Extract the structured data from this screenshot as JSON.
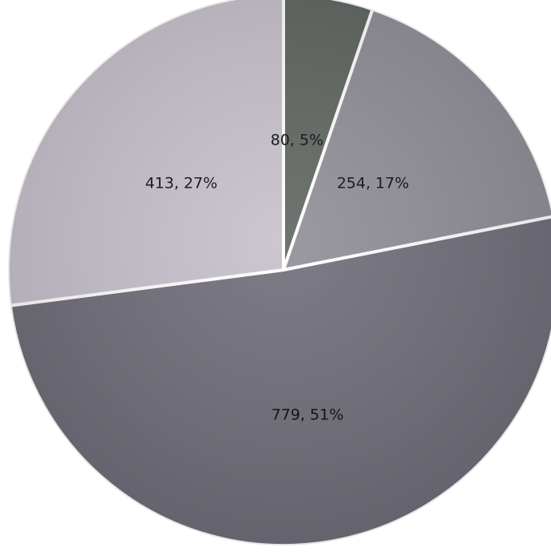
{
  "chart_data": {
    "type": "pie",
    "title": "",
    "slices": [
      {
        "value": 80,
        "percent": "5%",
        "label": "80, 5%",
        "color": "#5f6560"
      },
      {
        "value": 254,
        "percent": "17%",
        "label": "254, 17%",
        "color": "#8f8e97"
      },
      {
        "value": 779,
        "percent": "51%",
        "label": "779, 51%",
        "color": "#6f6d78"
      },
      {
        "value": 413,
        "percent": "27%",
        "label": "413, 27%",
        "color": "#c6c0cc"
      }
    ],
    "start_angle_deg": 0,
    "direction": "clockwise",
    "separator_color": "#ffffff",
    "legend": "none"
  }
}
